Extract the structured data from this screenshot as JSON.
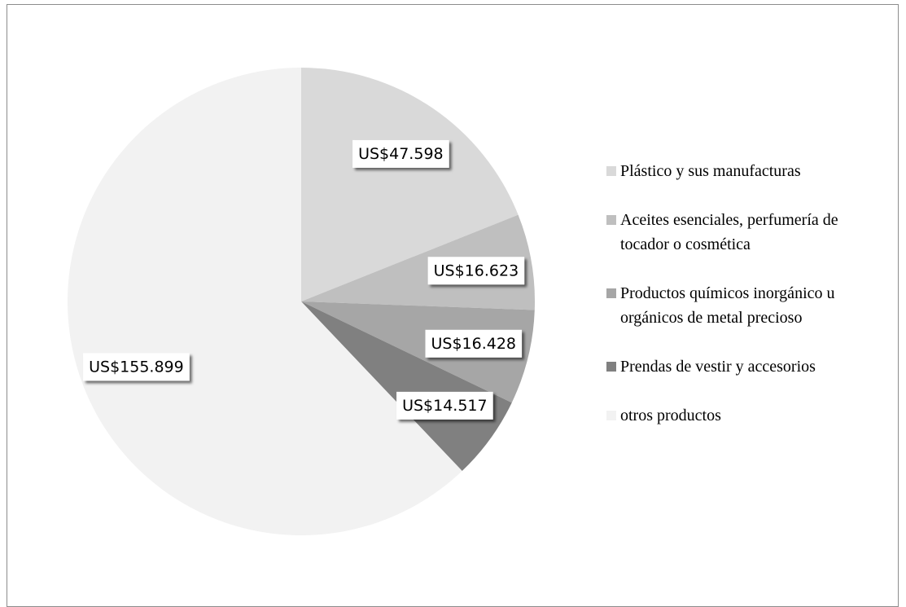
{
  "chart_data": {
    "type": "pie",
    "categories": [
      "Plástico y sus manufacturas",
      "Aceites esenciales, perfumería de tocador o cosmética",
      "Productos químicos inorgánico u orgánicos de metal precioso",
      "Prendas de vestir y accesorios",
      "otros productos"
    ],
    "values": [
      47598,
      16623,
      16428,
      14517,
      155899
    ],
    "value_labels": [
      "US$47.598",
      "US$16.623",
      "US$16.428",
      "US$14.517",
      "US$155.899"
    ],
    "colors": [
      "#d9d9d9",
      "#bfbfbf",
      "#a6a6a6",
      "#808080",
      "#f2f2f2"
    ],
    "legend": "right"
  }
}
